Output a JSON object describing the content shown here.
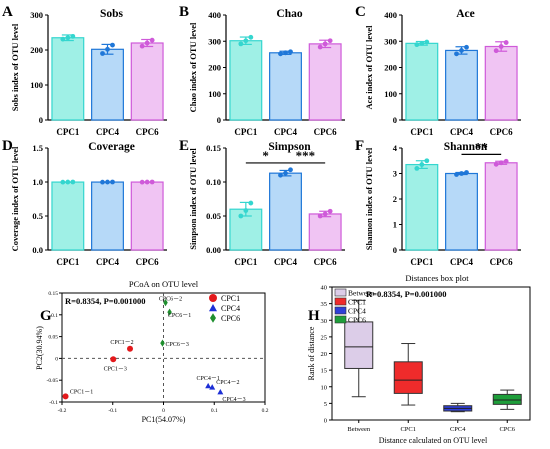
{
  "chart_data": [
    {
      "panel": "A",
      "type": "bar",
      "title": "Sobs",
      "ylabel": "Sobs index of OTU level",
      "ylim": [
        0,
        300
      ],
      "yticks": [
        "0",
        "100",
        "200",
        "300"
      ],
      "categories": [
        "CPC1",
        "CPC4",
        "CPC6"
      ],
      "values": [
        235,
        202,
        220
      ],
      "errors": [
        8,
        14,
        10
      ],
      "points": [
        [
          231,
          235,
          239
        ],
        [
          190,
          202,
          214
        ],
        [
          211,
          220,
          228
        ]
      ],
      "colors": [
        "#9ff0e6",
        "#b6d9f8",
        "#f0c4f3"
      ],
      "edge_colors": [
        "#34d6cf",
        "#1f77d8",
        "#cf5ad9"
      ],
      "significance": []
    },
    {
      "panel": "B",
      "type": "bar",
      "title": "Chao",
      "ylabel": "Chao index of OTU level",
      "ylim": [
        0,
        400
      ],
      "yticks": [
        "0",
        "100",
        "200",
        "300",
        "400"
      ],
      "categories": [
        "CPC1",
        "CPC4",
        "CPC6"
      ],
      "values": [
        302,
        256,
        290
      ],
      "errors": [
        14,
        6,
        14
      ],
      "points": [
        [
          290,
          302,
          315
        ],
        [
          252,
          256,
          260
        ],
        [
          278,
          290,
          302
        ]
      ],
      "colors": [
        "#9ff0e6",
        "#b6d9f8",
        "#f0c4f3"
      ],
      "edge_colors": [
        "#34d6cf",
        "#1f77d8",
        "#cf5ad9"
      ],
      "significance": []
    },
    {
      "panel": "C",
      "type": "bar",
      "title": "Ace",
      "ylabel": "Ace index of OTU level",
      "ylim": [
        0,
        400
      ],
      "yticks": [
        "0",
        "100",
        "200",
        "300",
        "400"
      ],
      "categories": [
        "CPC1",
        "CPC4",
        "CPC6"
      ],
      "values": [
        292,
        265,
        280
      ],
      "errors": [
        7,
        14,
        18
      ],
      "points": [
        [
          287,
          292,
          297
        ],
        [
          252,
          265,
          277
        ],
        [
          264,
          280,
          295
        ]
      ],
      "colors": [
        "#9ff0e6",
        "#b6d9f8",
        "#f0c4f3"
      ],
      "edge_colors": [
        "#34d6cf",
        "#1f77d8",
        "#cf5ad9"
      ],
      "significance": []
    },
    {
      "panel": "D",
      "type": "bar",
      "title": "Coverage",
      "ylabel": "Coverage index of OTU level",
      "ylim": [
        0,
        1.5
      ],
      "yticks": [
        "0.0",
        "0.5",
        "1.0",
        "1.5"
      ],
      "categories": [
        "CPC1",
        "CPC4",
        "CPC6"
      ],
      "values": [
        0.999,
        0.999,
        0.999
      ],
      "errors": [
        0.001,
        0.001,
        0.001
      ],
      "points": [
        [
          0.998,
          0.999,
          1.0
        ],
        [
          0.998,
          0.999,
          1.0
        ],
        [
          0.998,
          0.999,
          1.0
        ]
      ],
      "colors": [
        "#9ff0e6",
        "#b6d9f8",
        "#f0c4f3"
      ],
      "edge_colors": [
        "#34d6cf",
        "#1f77d8",
        "#cf5ad9"
      ],
      "significance": []
    },
    {
      "panel": "E",
      "type": "bar",
      "title": "Simpson",
      "ylabel": "Simpson index of OTU level",
      "ylim": [
        0,
        0.15
      ],
      "yticks": [
        "0.00",
        "0.05",
        "0.10",
        "0.15"
      ],
      "categories": [
        "CPC1",
        "CPC4",
        "CPC6"
      ],
      "values": [
        0.06,
        0.113,
        0.053
      ],
      "errors": [
        0.01,
        0.004,
        0.004
      ],
      "points": [
        [
          0.05,
          0.058,
          0.069
        ],
        [
          0.11,
          0.113,
          0.118
        ],
        [
          0.05,
          0.053,
          0.057
        ]
      ],
      "colors": [
        "#9ff0e6",
        "#b6d9f8",
        "#f0c4f3"
      ],
      "edge_colors": [
        "#34d6cf",
        "#1f77d8",
        "#cf5ad9"
      ],
      "significance": [
        {
          "from": 0,
          "to": 1,
          "label": "*",
          "y": 0.128
        },
        {
          "from": 1,
          "to": 2,
          "label": "***",
          "y": 0.128
        }
      ]
    },
    {
      "panel": "F",
      "type": "bar",
      "title": "Shannon",
      "ylabel": "Shannon index of OTU level",
      "ylim": [
        0,
        4
      ],
      "yticks": [
        "0",
        "1",
        "2",
        "3",
        "4"
      ],
      "categories": [
        "CPC1",
        "CPC4",
        "CPC6"
      ],
      "values": [
        3.35,
        3.0,
        3.42
      ],
      "errors": [
        0.15,
        0.04,
        0.06
      ],
      "points": [
        [
          3.2,
          3.35,
          3.5
        ],
        [
          2.96,
          3.0,
          3.04
        ],
        [
          3.36,
          3.42,
          3.48
        ]
      ],
      "colors": [
        "#9ff0e6",
        "#b6d9f8",
        "#f0c4f3"
      ],
      "edge_colors": [
        "#34d6cf",
        "#1f77d8",
        "#cf5ad9"
      ],
      "significance": [
        {
          "from": 1,
          "to": 2,
          "label": "**",
          "y": 3.75
        }
      ]
    },
    {
      "panel": "G",
      "type": "scatter",
      "title": "PCoA on OTU level",
      "xlabel": "PC1(54.07%)",
      "ylabel": "PC2(30.94%)",
      "xlim": [
        -0.2,
        0.2
      ],
      "ylim": [
        -0.1,
        0.15
      ],
      "xticks": [
        "-0.2",
        "-0.1",
        "0",
        "0.1",
        "0.2"
      ],
      "yticks": [
        "-0.1",
        "-0.05",
        "0",
        "0.05",
        "0.1",
        "0.15"
      ],
      "annotation": "R=0.8354, P=0.001000",
      "legend": [
        "CPC1",
        "CPC4",
        "CPC6"
      ],
      "legend_position": "top-right",
      "series": [
        {
          "name": "CPC1",
          "marker": "circle",
          "color": "#e3191c",
          "points": [
            {
              "x": -0.193,
              "y": -0.087,
              "label": "CPC1－1"
            },
            {
              "x": -0.066,
              "y": 0.022,
              "label": "CPC1－2"
            },
            {
              "x": -0.099,
              "y": -0.002,
              "label": "CPC1－3"
            }
          ]
        },
        {
          "name": "CPC4",
          "marker": "triangle",
          "color": "#1d2fd6",
          "points": [
            {
              "x": 0.088,
              "y": -0.063,
              "label": "CPC4－1"
            },
            {
              "x": 0.096,
              "y": -0.066,
              "label": "CPC4－2"
            },
            {
              "x": 0.112,
              "y": -0.077,
              "label": "CPC4－3"
            }
          ]
        },
        {
          "name": "CPC6",
          "marker": "diamond",
          "color": "#1f8f2e",
          "points": [
            {
              "x": 0.004,
              "y": 0.128,
              "label": "CPC6－2"
            },
            {
              "x": 0.012,
              "y": 0.106,
              "label": "CPC6－1"
            },
            {
              "x": -0.002,
              "y": 0.035,
              "label": "CPC6－3"
            }
          ]
        }
      ]
    },
    {
      "panel": "H",
      "type": "box",
      "title": "Distances box plot",
      "xlabel": "Distance calculated on OTU level",
      "ylabel": "Rank of distance",
      "ylim": [
        0,
        40
      ],
      "yticks": [
        "0",
        "5",
        "10",
        "15",
        "20",
        "25",
        "30",
        "35",
        "40"
      ],
      "annotation": "R=0.8354, P=0.001000",
      "legend_position": "top-left",
      "categories": [
        "Between",
        "CPC1",
        "CPC4",
        "CPC6"
      ],
      "colors": [
        "#dccde8",
        "#ef2b2b",
        "#2f3fd8",
        "#1e9e3a"
      ],
      "boxes": [
        {
          "name": "Between",
          "min": 7,
          "q1": 15.5,
          "median": 22,
          "q3": 29.5,
          "max": 36
        },
        {
          "name": "CPC1",
          "min": 4.5,
          "q1": 8,
          "median": 12,
          "q3": 17.5,
          "max": 23
        },
        {
          "name": "CPC4",
          "min": 2.5,
          "q1": 2.7,
          "median": 3.5,
          "q3": 4.3,
          "max": 5
        },
        {
          "name": "CPC6",
          "min": 3.2,
          "q1": 4.7,
          "median": 6,
          "q3": 7.7,
          "max": 9
        }
      ]
    }
  ]
}
